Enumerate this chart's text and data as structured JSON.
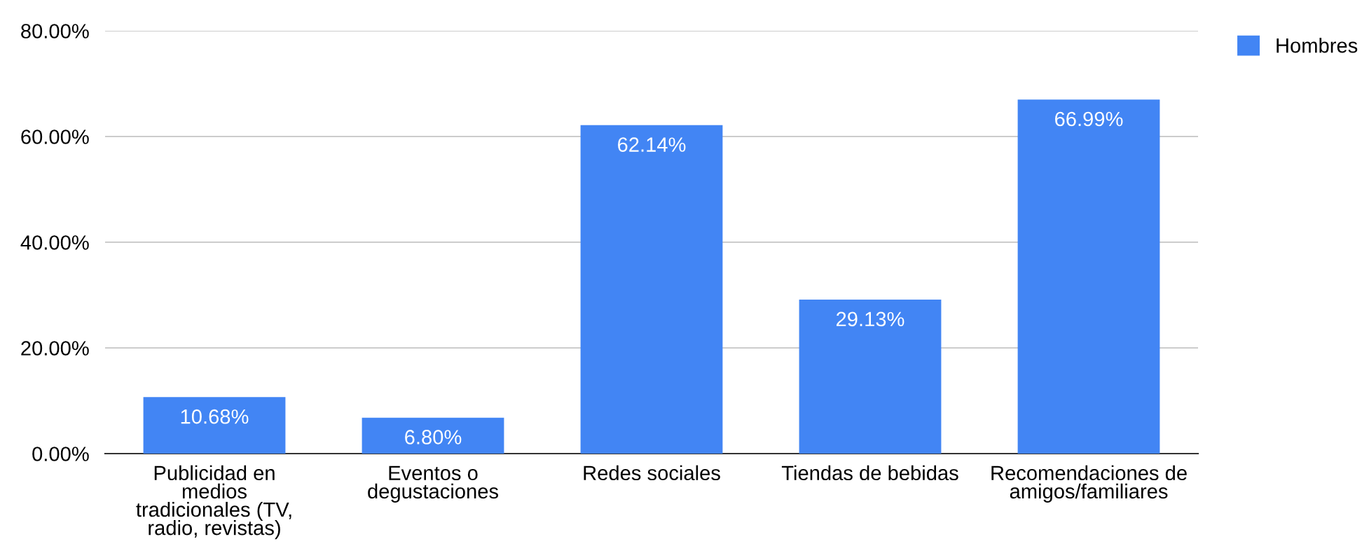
{
  "chart_data": {
    "type": "bar",
    "categories": [
      "Publicidad en medios tradicionales (TV, radio, revistas)",
      "Eventos o degustaciones",
      "Redes sociales",
      "Tiendas de bebidas",
      "Recomendaciones de amigos/familiares"
    ],
    "series": [
      {
        "name": "Hombres",
        "color": "#4285f4",
        "values": [
          10.68,
          6.8,
          62.14,
          29.13,
          66.99
        ],
        "value_labels": [
          "10.68%",
          "6.80%",
          "62.14%",
          "29.13%",
          "66.99%"
        ]
      }
    ],
    "ylim": [
      0,
      80
    ],
    "yticks": [
      {
        "value": 0,
        "label": "0.00%"
      },
      {
        "value": 20,
        "label": "20.00%"
      },
      {
        "value": 40,
        "label": "40.00%"
      },
      {
        "value": 60,
        "label": "60.00%"
      },
      {
        "value": 80,
        "label": "80.00%"
      }
    ],
    "grid": "y",
    "legend": "top right"
  }
}
